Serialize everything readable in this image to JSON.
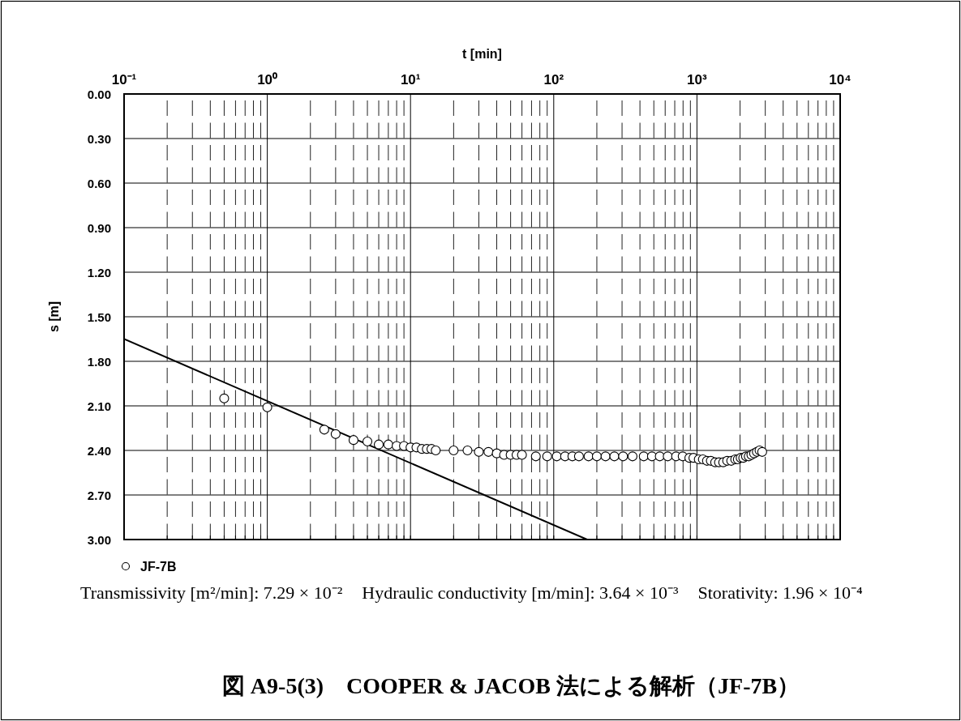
{
  "chart_data": {
    "type": "scatter",
    "title": "図 A9-5(3)　COOPER & JACOB 法による解析（JF-7B）",
    "xlabel": "t [min]",
    "ylabel": "s [m]",
    "annotations": [
      "Transmissivity [m²/min]: 7.29 × 10⁻²",
      "Hydraulic conductivity [m/min]: 3.64 × 10⁻³",
      "Storativity: 1.96 × 10⁻⁴"
    ],
    "log": "x",
    "xlim": [
      0.1,
      10000
    ],
    "xticks": [
      {
        "value": 0.1,
        "label": "10⁻¹"
      },
      {
        "value": 0.2,
        "label": null
      },
      {
        "value": 0.3,
        "label": null
      },
      {
        "value": 0.4,
        "label": null
      },
      {
        "value": 0.5,
        "label": null
      },
      {
        "value": 0.6,
        "label": null
      },
      {
        "value": 0.7,
        "label": null
      },
      {
        "value": 0.8,
        "label": null
      },
      {
        "value": 0.9,
        "label": null
      },
      {
        "value": 1,
        "label": "10⁰"
      },
      {
        "value": 2,
        "label": null
      },
      {
        "value": 3,
        "label": null
      },
      {
        "value": 4,
        "label": null
      },
      {
        "value": 5,
        "label": null
      },
      {
        "value": 6,
        "label": null
      },
      {
        "value": 7,
        "label": null
      },
      {
        "value": 8,
        "label": null
      },
      {
        "value": 9,
        "label": null
      },
      {
        "value": 10,
        "label": "10¹"
      },
      {
        "value": 20,
        "label": null
      },
      {
        "value": 30,
        "label": null
      },
      {
        "value": 40,
        "label": null
      },
      {
        "value": 50,
        "label": null
      },
      {
        "value": 60,
        "label": null
      },
      {
        "value": 70,
        "label": null
      },
      {
        "value": 80,
        "label": null
      },
      {
        "value": 90,
        "label": null
      },
      {
        "value": 100,
        "label": "10²"
      },
      {
        "value": 200,
        "label": null
      },
      {
        "value": 300,
        "label": null
      },
      {
        "value": 400,
        "label": null
      },
      {
        "value": 500,
        "label": null
      },
      {
        "value": 600,
        "label": null
      },
      {
        "value": 700,
        "label": null
      },
      {
        "value": 800,
        "label": null
      },
      {
        "value": 900,
        "label": null
      },
      {
        "value": 1000,
        "label": "10³"
      },
      {
        "value": 2000,
        "label": null
      },
      {
        "value": 3000,
        "label": null
      },
      {
        "value": 4000,
        "label": null
      },
      {
        "value": 5000,
        "label": null
      },
      {
        "value": 6000,
        "label": null
      },
      {
        "value": 7000,
        "label": null
      },
      {
        "value": 8000,
        "label": null
      },
      {
        "value": 9000,
        "label": null
      },
      {
        "value": 10000,
        "label": "10⁴"
      }
    ],
    "ylim": [
      3.0,
      0.0
    ],
    "yticks": [
      {
        "value": 0,
        "label": "0.00"
      },
      {
        "value": 0.3,
        "label": "0.30"
      },
      {
        "value": 0.6,
        "label": "0.60"
      },
      {
        "value": 0.9,
        "label": "0.90"
      },
      {
        "value": 1.2,
        "label": "1.20"
      },
      {
        "value": 1.5,
        "label": "1.50"
      },
      {
        "value": 1.8,
        "label": "1.80"
      },
      {
        "value": 2.1,
        "label": "2.10"
      },
      {
        "value": 2.4,
        "label": "2.40"
      },
      {
        "value": 2.7,
        "label": "2.70"
      },
      {
        "value": 3.0,
        "label": "3.00"
      }
    ],
    "grid": true,
    "legend": "bottom left",
    "series": [
      {
        "name": "JF-7B",
        "marker": "circle",
        "color": "#000000",
        "x": [
          0.5,
          1,
          2.5,
          3,
          4,
          5,
          6,
          7,
          8,
          9,
          10,
          11,
          12,
          13,
          14,
          15,
          20,
          25,
          30,
          35,
          40,
          45,
          50,
          55,
          60,
          75,
          90,
          105,
          120,
          135,
          150,
          175,
          200,
          230,
          265,
          305,
          355,
          425,
          485,
          550,
          625,
          715,
          795,
          885,
          945,
          1030,
          1100,
          1175,
          1250,
          1340,
          1425,
          1525,
          1625,
          1735,
          1850,
          1930,
          2020,
          2105,
          2200,
          2300,
          2400,
          2505,
          2620,
          2735,
          2855
        ],
        "values": [
          2.05,
          2.11,
          2.26,
          2.29,
          2.33,
          2.34,
          2.36,
          2.36,
          2.37,
          2.37,
          2.38,
          2.38,
          2.39,
          2.39,
          2.39,
          2.4,
          2.4,
          2.4,
          2.41,
          2.41,
          2.42,
          2.43,
          2.43,
          2.43,
          2.43,
          2.44,
          2.44,
          2.44,
          2.44,
          2.44,
          2.44,
          2.44,
          2.44,
          2.44,
          2.44,
          2.44,
          2.44,
          2.44,
          2.44,
          2.44,
          2.44,
          2.44,
          2.44,
          2.45,
          2.45,
          2.46,
          2.46,
          2.47,
          2.47,
          2.48,
          2.48,
          2.48,
          2.47,
          2.47,
          2.46,
          2.46,
          2.45,
          2.45,
          2.44,
          2.44,
          2.43,
          2.42,
          2.41,
          2.4,
          2.41
        ]
      },
      {
        "type": "line",
        "color": "#000000",
        "x": [
          0.1,
          171
        ],
        "values": [
          1.65,
          3.0
        ]
      }
    ]
  }
}
